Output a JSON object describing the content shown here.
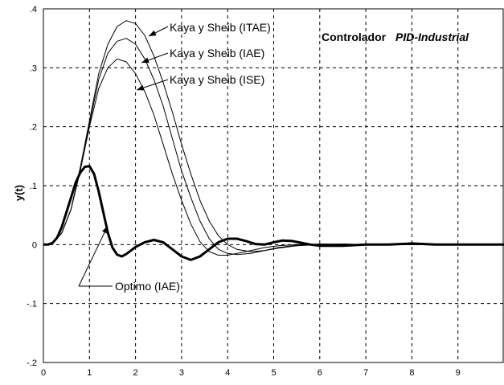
{
  "chart_data": {
    "type": "line",
    "title_parts": [
      "Controlador",
      "PID-Industrial"
    ],
    "xlabel": "",
    "ylabel": "y(t)",
    "xlim": [
      0,
      10
    ],
    "ylim": [
      -0.2,
      0.4
    ],
    "grid": true,
    "x_ticks": [
      0,
      1,
      2,
      3,
      4,
      5,
      6,
      7,
      8,
      9
    ],
    "x_tick_labels": [
      "0",
      "1",
      "2",
      "3",
      "4",
      "5",
      "6",
      "7",
      "8",
      "9"
    ],
    "y_ticks": [
      0.4,
      0.3,
      0.2,
      0.1,
      0,
      -0.1,
      -0.2
    ],
    "y_tick_labels": [
      ".4",
      ".3",
      ".2",
      ".1",
      "0",
      "-.1",
      "-.2"
    ],
    "series": [
      {
        "name": "Kaya y Sheib (ITAE)",
        "x": [
          0,
          0.1,
          0.2,
          0.4,
          0.6,
          0.8,
          1.0,
          1.2,
          1.4,
          1.6,
          1.8,
          2.0,
          2.2,
          2.4,
          2.6,
          2.8,
          3.0,
          3.2,
          3.4,
          3.6,
          3.8,
          4.0,
          4.2,
          4.5,
          4.8,
          5.1,
          5.5,
          6.0,
          6.5,
          7.0,
          8.0,
          9.0,
          10.0
        ],
        "y": [
          0,
          0,
          0.002,
          0.02,
          0.06,
          0.13,
          0.21,
          0.29,
          0.34,
          0.37,
          0.38,
          0.375,
          0.355,
          0.32,
          0.275,
          0.225,
          0.17,
          0.12,
          0.075,
          0.04,
          0.015,
          0.0,
          -0.008,
          -0.012,
          -0.01,
          -0.006,
          -0.002,
          0.0,
          0.001,
          0.0,
          0.0,
          0.0,
          0.0
        ]
      },
      {
        "name": "Kaya y Sheib (IAE)",
        "x": [
          0,
          0.1,
          0.2,
          0.4,
          0.6,
          0.8,
          1.0,
          1.2,
          1.4,
          1.6,
          1.8,
          2.0,
          2.2,
          2.4,
          2.6,
          2.8,
          3.0,
          3.2,
          3.4,
          3.6,
          3.8,
          4.0,
          4.2,
          4.5,
          4.8,
          5.1,
          5.5,
          6.0,
          6.5,
          7.0,
          8.0,
          9.0,
          10.0
        ],
        "y": [
          0,
          0,
          0.002,
          0.02,
          0.06,
          0.13,
          0.205,
          0.28,
          0.325,
          0.345,
          0.35,
          0.34,
          0.315,
          0.28,
          0.235,
          0.18,
          0.125,
          0.08,
          0.04,
          0.01,
          -0.008,
          -0.015,
          -0.017,
          -0.015,
          -0.01,
          -0.005,
          -0.001,
          0.001,
          0.001,
          0.0,
          0.0,
          0.0,
          0.0
        ]
      },
      {
        "name": "Kaya y Sheib (ISE)",
        "x": [
          0,
          0.1,
          0.2,
          0.4,
          0.6,
          0.8,
          1.0,
          1.2,
          1.4,
          1.6,
          1.8,
          2.0,
          2.2,
          2.4,
          2.6,
          2.8,
          3.0,
          3.2,
          3.4,
          3.6,
          3.8,
          4.0,
          4.2,
          4.5,
          4.8,
          5.1,
          5.5,
          6.0,
          6.5,
          7.0,
          8.0,
          9.0,
          10.0
        ],
        "y": [
          0,
          0,
          0.002,
          0.02,
          0.06,
          0.125,
          0.2,
          0.265,
          0.3,
          0.315,
          0.31,
          0.29,
          0.26,
          0.22,
          0.17,
          0.12,
          0.075,
          0.035,
          0.005,
          -0.012,
          -0.018,
          -0.018,
          -0.015,
          -0.01,
          -0.005,
          -0.002,
          0.0,
          0.001,
          0.0,
          0.0,
          0.0,
          0.0,
          0.0
        ]
      },
      {
        "name": "Optimo (IAE)",
        "x": [
          0,
          0.1,
          0.2,
          0.3,
          0.4,
          0.5,
          0.6,
          0.7,
          0.8,
          0.9,
          1.0,
          1.1,
          1.2,
          1.3,
          1.4,
          1.5,
          1.6,
          1.7,
          1.8,
          1.9,
          2.0,
          2.2,
          2.4,
          2.6,
          2.8,
          3.0,
          3.2,
          3.4,
          3.6,
          3.8,
          4.0,
          4.2,
          4.4,
          4.6,
          4.8,
          5.0,
          5.2,
          5.4,
          5.6,
          5.8,
          6.0,
          6.5,
          7.0,
          7.5,
          8.0,
          8.5,
          9.0,
          9.5,
          10.0
        ],
        "y": [
          0,
          0,
          0.003,
          0.012,
          0.03,
          0.055,
          0.08,
          0.105,
          0.122,
          0.132,
          0.133,
          0.12,
          0.09,
          0.055,
          0.02,
          -0.005,
          -0.017,
          -0.02,
          -0.016,
          -0.01,
          -0.004,
          0.004,
          0.008,
          0.004,
          -0.008,
          -0.02,
          -0.026,
          -0.02,
          -0.008,
          0.004,
          0.01,
          0.01,
          0.006,
          0.001,
          0.0,
          0.004,
          0.007,
          0.006,
          0.003,
          0.0,
          -0.002,
          -0.002,
          0.0,
          0.0,
          0.002,
          0.0,
          0.0,
          0.0,
          0.0
        ],
        "bold": true
      }
    ],
    "annotations": [
      {
        "text": "Kaya y Sheib (ITAE)",
        "series_index": 0
      },
      {
        "text": "Kaya y Sheib (IAE)",
        "series_index": 1
      },
      {
        "text": "Kaya y Sheib (ISE)",
        "series_index": 2
      },
      {
        "text": "Optimo (IAE)",
        "series_index": 3
      }
    ]
  }
}
